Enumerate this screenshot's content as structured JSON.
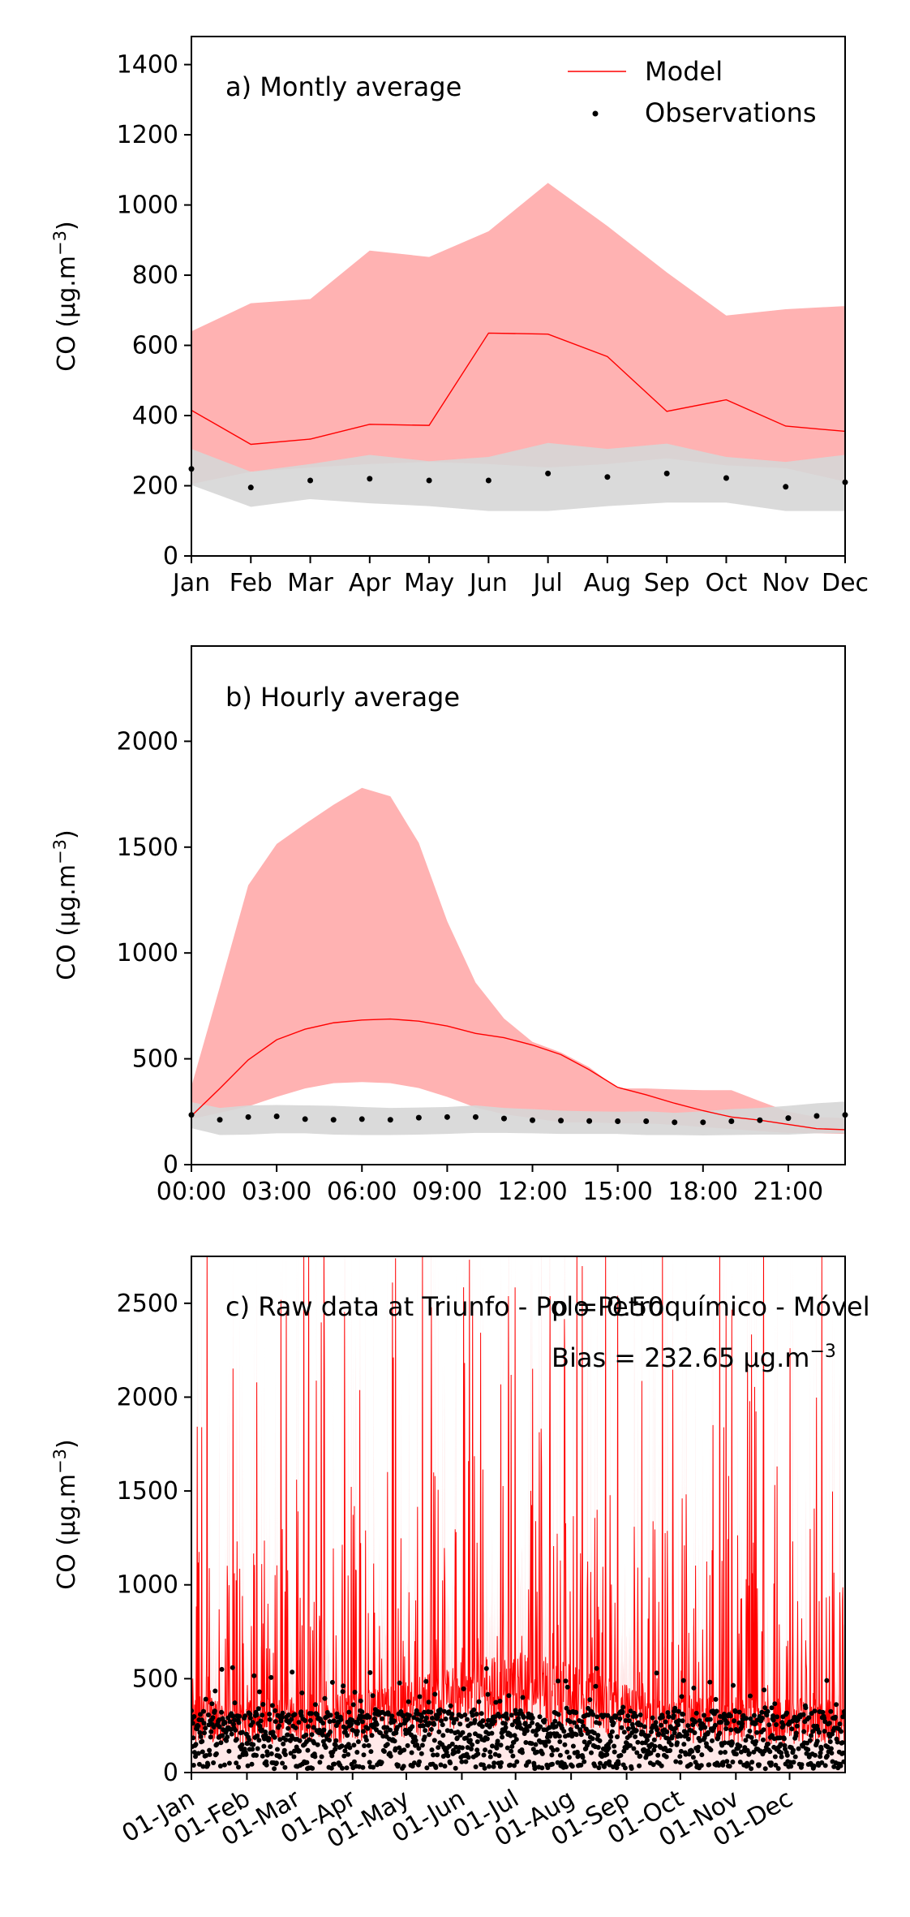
{
  "colors": {
    "model": "#ff0000",
    "model_band": "#ffb2b2",
    "obs": "#000000",
    "obs_band": "#d6d6d6"
  },
  "legend": {
    "model": "Model",
    "observations": "Observations",
    "placement": "top-right"
  },
  "chart_data": [
    {
      "type": "line",
      "annotation": "a) Montly average",
      "ylabel": "CO (µg.m",
      "ylabel_sup": "−3",
      "ylabel_close": ")",
      "categories": [
        "Jan",
        "Feb",
        "Mar",
        "Apr",
        "May",
        "Jun",
        "Jul",
        "Aug",
        "Sep",
        "Oct",
        "Nov",
        "Dec"
      ],
      "ylim": [
        0,
        1480
      ],
      "yticks": [
        "0",
        "200",
        "400",
        "600",
        "800",
        "1000",
        "1200",
        "1400"
      ],
      "ytick_values": [
        0,
        200,
        400,
        600,
        800,
        1000,
        1200,
        1400
      ],
      "series": [
        {
          "name": "Model",
          "values": [
            415,
            318,
            333,
            375,
            372,
            635,
            632,
            568,
            412,
            445,
            370,
            355
          ],
          "band_upper": [
            640,
            720,
            732,
            870,
            852,
            925,
            1063,
            940,
            808,
            685,
            703,
            712
          ],
          "band_lower": [
            205,
            240,
            252,
            262,
            268,
            262,
            252,
            262,
            278,
            258,
            250,
            212
          ]
        },
        {
          "name": "Observations",
          "values": [
            248,
            195,
            215,
            220,
            215,
            215,
            235,
            225,
            235,
            222,
            197,
            210
          ],
          "band_upper": [
            305,
            240,
            262,
            288,
            270,
            282,
            322,
            305,
            320,
            282,
            268,
            288
          ],
          "band_lower": [
            202,
            140,
            162,
            150,
            142,
            128,
            128,
            142,
            152,
            152,
            128,
            128
          ]
        }
      ]
    },
    {
      "type": "line",
      "annotation": "b) Hourly average",
      "ylabel": "CO (µg.m",
      "ylabel_sup": "−3",
      "ylabel_close": ")",
      "xticks": [
        "00:00",
        "03:00",
        "06:00",
        "09:00",
        "12:00",
        "15:00",
        "18:00",
        "21:00"
      ],
      "xtick_values": [
        0,
        3,
        6,
        9,
        12,
        15,
        18,
        21
      ],
      "xlim": [
        0,
        23
      ],
      "ylim": [
        0,
        2450
      ],
      "yticks": [
        "0",
        "500",
        "1000",
        "1500",
        "2000"
      ],
      "ytick_values": [
        0,
        500,
        1000,
        1500,
        2000
      ],
      "x": [
        0,
        1,
        2,
        3,
        4,
        5,
        6,
        7,
        8,
        9,
        10,
        11,
        12,
        13,
        14,
        15,
        16,
        17,
        18,
        19,
        20,
        21,
        22,
        23
      ],
      "series": [
        {
          "name": "Model",
          "values": [
            230,
            360,
            495,
            590,
            640,
            670,
            683,
            688,
            678,
            655,
            620,
            600,
            565,
            520,
            448,
            365,
            330,
            290,
            255,
            225,
            210,
            190,
            170,
            165
          ],
          "band_upper": [
            370,
            840,
            1320,
            1515,
            1610,
            1700,
            1780,
            1740,
            1520,
            1150,
            860,
            690,
            580,
            530,
            460,
            360,
            360,
            355,
            352,
            352,
            300,
            250,
            225,
            220
          ],
          "band_lower": [
            215,
            245,
            275,
            320,
            360,
            385,
            390,
            385,
            362,
            320,
            270,
            238,
            220,
            200,
            200,
            195,
            195,
            188,
            178,
            168,
            158,
            150,
            148,
            145
          ]
        },
        {
          "name": "Observations",
          "values": [
            235,
            212,
            225,
            228,
            215,
            212,
            215,
            212,
            222,
            225,
            225,
            218,
            210,
            208,
            206,
            205,
            205,
            200,
            200,
            205,
            210,
            220,
            230,
            235
          ],
          "band_upper": [
            295,
            268,
            280,
            282,
            280,
            278,
            272,
            268,
            270,
            272,
            280,
            268,
            262,
            255,
            252,
            250,
            252,
            245,
            252,
            262,
            268,
            278,
            290,
            298
          ],
          "band_lower": [
            172,
            140,
            142,
            148,
            148,
            142,
            140,
            140,
            142,
            145,
            150,
            150,
            148,
            145,
            145,
            145,
            140,
            140,
            138,
            140,
            142,
            142,
            148,
            148
          ]
        }
      ]
    },
    {
      "type": "line",
      "annotation": "c) Raw data at Triunfo - Polo Petroquímico - Móvel",
      "stat_r": "p = 0.50",
      "stat_bias_prefix": "Bias = 232.65 µg.m",
      "stat_bias_sup": "−3",
      "ylabel": "CO (µg.m",
      "ylabel_sup": "−3",
      "ylabel_close": ")",
      "xticks": [
        "01-Jan",
        "01-Feb",
        "01-Mar",
        "01-Apr",
        "01-May",
        "01-Jun",
        "01-Jul",
        "01-Aug",
        "01-Sep",
        "01-Oct",
        "01-Nov",
        "01-Dec"
      ],
      "xtick_days": [
        0,
        31,
        59,
        90,
        120,
        151,
        181,
        212,
        243,
        273,
        304,
        334
      ],
      "xlim_days": [
        0,
        365
      ],
      "ylim": [
        0,
        2750
      ],
      "yticks": [
        "0",
        "500",
        "1000",
        "1500",
        "2000",
        "2500"
      ],
      "ytick_values": [
        0,
        500,
        1000,
        1500,
        2000,
        2500
      ],
      "series": [
        {
          "name": "Model",
          "description_values": "hourly raw model series, peaks up to >2750"
        },
        {
          "name": "Observations",
          "description_values": "hourly raw observations, mostly 0–700"
        }
      ]
    }
  ]
}
